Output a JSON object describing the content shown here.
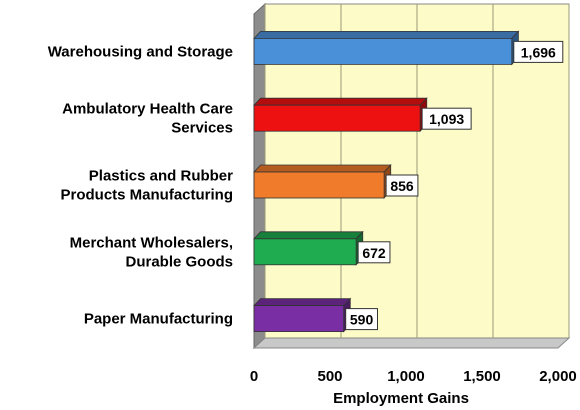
{
  "chart_data": {
    "type": "bar",
    "orientation": "horizontal",
    "categories": [
      [
        "Warehousing and Storage"
      ],
      [
        "Ambulatory Health Care",
        "Services"
      ],
      [
        "Plastics and Rubber",
        "Products Manufacturing"
      ],
      [
        "Merchant Wholesalers,",
        "Durable Goods"
      ],
      [
        "Paper Manufacturing"
      ]
    ],
    "values": [
      1696,
      1093,
      856,
      672,
      590
    ],
    "data_labels": [
      "1,696",
      "1,093",
      "856",
      "672",
      "590"
    ],
    "colors": [
      "#4a90d9",
      "#ee1111",
      "#f07b2a",
      "#1fab4f",
      "#7a2ea3"
    ],
    "xlabel": "Employment Gains",
    "xlim": [
      0,
      2000
    ],
    "xticks": [
      0,
      500,
      1000,
      1500,
      2000
    ],
    "xtick_labels": [
      "0",
      "500",
      "1,000",
      "1,500",
      "2,000"
    ],
    "grid": true,
    "style": "3d",
    "background_color": "#fdfbc8"
  }
}
